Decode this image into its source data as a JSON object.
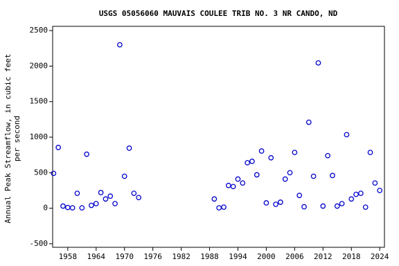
{
  "chart_data": {
    "type": "scatter",
    "title": "USGS 05056060 MAUVAIS COULEE TRIB NO. 3 NR CANDO, ND",
    "ylabel": [
      "Annual Peak Streamflow, in cubic feet",
      "per second"
    ],
    "color": "#0000cc",
    "x": [
      1955,
      1956,
      1957,
      1958,
      1959,
      1960,
      1961,
      1962,
      1963,
      1964,
      1965,
      1966,
      1967,
      1968,
      1969,
      1970,
      1971,
      1972,
      1973,
      1989,
      1990,
      1991,
      1992,
      1993,
      1994,
      1995,
      1996,
      1997,
      1998,
      1999,
      2000,
      2001,
      2002,
      2003,
      2004,
      2005,
      2006,
      2007,
      2008,
      2009,
      2010,
      2011,
      2012,
      2013,
      2014,
      2015,
      2016,
      2017,
      2018,
      2019,
      2020,
      2021,
      2022,
      2023,
      2024
    ],
    "values": [
      490,
      855,
      30,
      10,
      5,
      210,
      5,
      760,
      40,
      65,
      220,
      130,
      170,
      65,
      2300,
      450,
      845,
      210,
      150,
      130,
      5,
      15,
      320,
      305,
      410,
      355,
      640,
      660,
      470,
      805,
      75,
      710,
      55,
      85,
      410,
      500,
      785,
      180,
      20,
      1210,
      450,
      2045,
      30,
      740,
      460,
      30,
      65,
      1035,
      130,
      195,
      210,
      15,
      785,
      355,
      250
    ],
    "xlim": [
      1954.8,
      2025
    ],
    "xticks": [
      1958,
      1964,
      1970,
      1976,
      1982,
      1988,
      1994,
      2000,
      2006,
      2012,
      2018,
      2024
    ],
    "ylim": [
      -550,
      2560
    ],
    "yticks": [
      -500,
      0,
      500,
      1000,
      1500,
      2000,
      2500
    ]
  }
}
